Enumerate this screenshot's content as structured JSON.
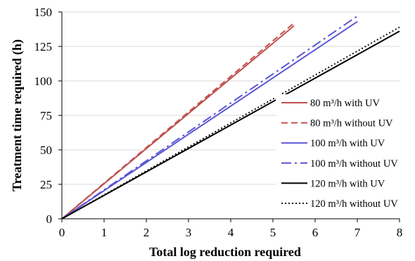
{
  "chart_data": {
    "type": "line",
    "xlabel": "Total log reduction required",
    "ylabel": "Treatment time required (h)",
    "xlim": [
      0,
      8
    ],
    "ylim": [
      0,
      150
    ],
    "xticks": [
      "0",
      "1",
      "2",
      "3",
      "4",
      "5",
      "6",
      "7",
      "8"
    ],
    "yticks": [
      "0",
      "25",
      "50",
      "75",
      "100",
      "125",
      "150"
    ],
    "grid": "horizontal",
    "legend_position": "right",
    "series": [
      {
        "name": "80 m³/h with UV",
        "color": "#c0504d",
        "dash": "solid",
        "x": [
          0,
          5.5
        ],
        "y": [
          0,
          140
        ]
      },
      {
        "name": "80 m³/h without UV",
        "color": "#c0504d",
        "dash": "dashed",
        "x": [
          0,
          5.5
        ],
        "y": [
          0,
          142
        ]
      },
      {
        "name": "100 m³/h with UV",
        "color": "#5b55d4",
        "dash": "solid",
        "x": [
          0,
          7
        ],
        "y": [
          0,
          143
        ]
      },
      {
        "name": "100 m³/h without UV",
        "color": "#5b55d4",
        "dash": "dashdot",
        "x": [
          0,
          7
        ],
        "y": [
          0,
          147
        ]
      },
      {
        "name": "120 m³/h with UV",
        "color": "#000000",
        "dash": "solid",
        "x": [
          0,
          8
        ],
        "y": [
          0,
          136
        ]
      },
      {
        "name": "120 m³/h without UV",
        "color": "#000000",
        "dash": "dotted",
        "x": [
          0,
          8
        ],
        "y": [
          0,
          139
        ]
      }
    ]
  }
}
